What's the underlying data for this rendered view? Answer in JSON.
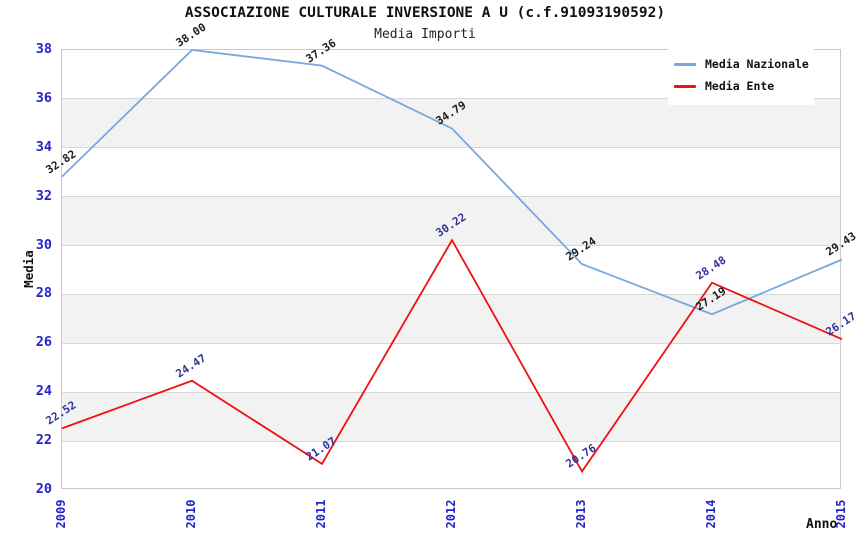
{
  "chart_data": {
    "type": "line",
    "title": "ASSOCIAZIONE CULTURALE INVERSIONE A U (c.f.91093190592)",
    "subtitle": "Media Importi",
    "xlabel": "Anno",
    "ylabel": "Media",
    "categories": [
      "2009",
      "2010",
      "2011",
      "2012",
      "2013",
      "2014",
      "2015"
    ],
    "series": [
      {
        "name": "Media Nazionale",
        "color": "#79a9dc",
        "label_color": "#1c1c1c",
        "values": [
          32.82,
          38.0,
          37.36,
          34.79,
          29.24,
          27.19,
          29.43
        ],
        "labels": [
          "32.82",
          "38.00",
          "37.36",
          "34.79",
          "29.24",
          "27.19",
          "29.43"
        ]
      },
      {
        "name": "Media Ente",
        "color": "#ee1111",
        "label_color": "#333399",
        "values": [
          22.52,
          24.47,
          21.07,
          30.22,
          20.76,
          28.48,
          26.17
        ],
        "labels": [
          "22.52",
          "24.47",
          "21.07",
          "30.22",
          "20.76",
          "28.48",
          "26.17"
        ]
      }
    ],
    "ylim": [
      20,
      38
    ],
    "ytick_step": 2,
    "yticks": [
      38,
      36,
      34,
      32,
      30,
      28,
      26,
      24,
      22,
      20
    ],
    "grid": true,
    "legend_position": "top-right"
  },
  "style": {
    "tick_color": "#2424cc",
    "band_color": "#f2f2f2",
    "grid_color": "#d8d8d8",
    "plot_border_color": "#c9c9c9",
    "background": "#ffffff"
  }
}
